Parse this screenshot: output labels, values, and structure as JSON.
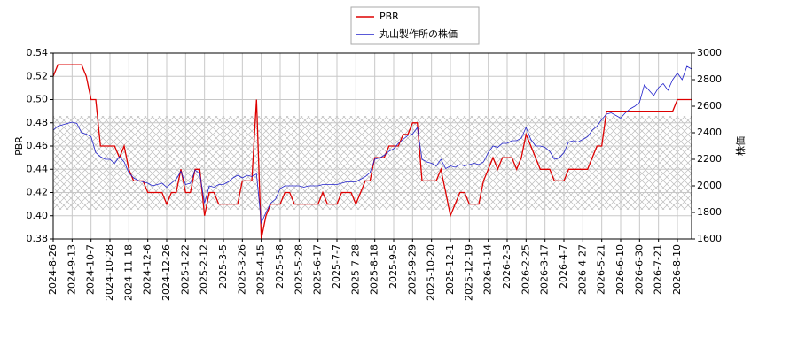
{
  "chart_data": {
    "type": "line",
    "y_label": "PBR",
    "y2_label": "株価",
    "legend": "upper center",
    "categories": [
      "2024-8-26",
      null,
      null,
      null,
      "2024-9-13",
      null,
      null,
      null,
      "2024-10-7",
      null,
      null,
      null,
      "2024-10-28",
      null,
      null,
      null,
      "2024-11-18",
      null,
      null,
      null,
      "2024-12-6",
      null,
      null,
      null,
      "2024-12-26",
      null,
      null,
      null,
      "2025-1-22",
      null,
      null,
      null,
      "2025-2-12",
      null,
      null,
      null,
      "2025-3-5",
      null,
      null,
      null,
      "2025-3-26",
      null,
      null,
      null,
      "2025-4-15",
      null,
      null,
      null,
      "2025-5-8",
      null,
      null,
      null,
      "2025-5-28",
      null,
      null,
      null,
      "2025-6-17",
      null,
      null,
      null,
      "2025-7-7",
      null,
      null,
      null,
      "2025-7-28",
      null,
      null,
      null,
      "2025-8-18",
      null,
      null,
      null,
      "2025-9-5",
      null,
      null,
      null,
      "2025-9-29",
      null,
      null,
      null,
      "2025-10-20",
      null,
      null,
      null,
      "2025-12-1",
      null,
      null,
      null,
      "2025-12-19",
      null,
      null,
      null,
      "2026-1-14",
      null,
      null,
      null,
      "2026-2-3",
      null,
      null,
      null,
      "2026-2-25",
      null,
      null,
      null,
      "2026-3-17",
      null,
      null,
      null,
      "2026-4-7",
      null,
      null,
      null,
      "2026-4-27",
      null,
      null,
      null,
      "2026-5-21",
      null,
      null,
      null,
      "2026-6-10",
      null,
      null,
      null,
      "2026-6-30",
      null,
      null,
      null,
      "2026-7-21",
      null,
      null,
      null,
      "2026-8-10",
      null,
      null,
      null
    ],
    "series": [
      {
        "name": "PBR",
        "color": "#dd0000",
        "values": [
          0.52,
          0.53,
          0.53,
          0.53,
          0.53,
          0.53,
          0.53,
          0.52,
          0.5,
          0.5,
          0.46,
          0.46,
          0.46,
          0.46,
          0.45,
          0.46,
          0.44,
          0.43,
          0.43,
          0.43,
          0.42,
          0.42,
          0.42,
          0.42,
          0.41,
          0.42,
          0.42,
          0.44,
          0.42,
          0.42,
          0.44,
          0.44,
          0.4,
          0.42,
          0.42,
          0.41,
          0.41,
          0.41,
          0.41,
          0.41,
          0.43,
          0.43,
          0.43,
          0.5,
          0.38,
          0.4,
          0.41,
          0.41,
          0.41,
          0.42,
          0.42,
          0.41,
          0.41,
          0.41,
          0.41,
          0.41,
          0.41,
          0.42,
          0.41,
          0.41,
          0.41,
          0.42,
          0.42,
          0.42,
          0.41,
          0.42,
          0.43,
          0.43,
          0.45,
          0.45,
          0.45,
          0.46,
          0.46,
          0.46,
          0.47,
          0.47,
          0.48,
          0.48,
          0.43,
          0.43,
          0.43,
          0.43,
          0.44,
          0.42,
          0.4,
          0.41,
          0.42,
          0.42,
          0.41,
          0.41,
          0.41,
          0.43,
          0.44,
          0.45,
          0.44,
          0.45,
          0.45,
          0.45,
          0.44,
          0.45,
          0.47,
          0.46,
          0.45,
          0.44,
          0.44,
          0.44,
          0.43,
          0.43,
          0.43,
          0.44,
          0.44,
          0.44,
          0.44,
          0.44,
          0.45,
          0.46,
          0.46,
          0.49,
          0.49,
          0.49,
          0.49,
          0.49,
          0.49,
          0.49,
          0.49,
          0.49,
          0.49,
          0.49,
          0.49,
          0.49,
          0.49,
          0.49,
          0.5,
          0.5,
          0.5,
          0.5
        ]
      },
      {
        "name": "丸山製作所の株価",
        "color": "#2222cc",
        "axis": "y2",
        "values": [
          2420,
          2450,
          2460,
          2470,
          2480,
          2470,
          2400,
          2390,
          2370,
          2250,
          2220,
          2200,
          2200,
          2170,
          2220,
          2180,
          2100,
          2060,
          2040,
          2030,
          2020,
          2000,
          2010,
          2020,
          1990,
          2020,
          2050,
          2110,
          2010,
          2020,
          2120,
          2090,
          1870,
          2000,
          1990,
          2010,
          2010,
          2030,
          2060,
          2080,
          2060,
          2080,
          2070,
          2090,
          1720,
          1800,
          1870,
          1900,
          1980,
          2000,
          2000,
          2000,
          2000,
          1990,
          2000,
          2000,
          2000,
          2010,
          2010,
          2010,
          2010,
          2020,
          2030,
          2030,
          2030,
          2050,
          2070,
          2100,
          2200,
          2210,
          2230,
          2260,
          2280,
          2320,
          2350,
          2380,
          2390,
          2440,
          2200,
          2180,
          2170,
          2150,
          2200,
          2130,
          2150,
          2140,
          2160,
          2150,
          2160,
          2170,
          2160,
          2180,
          2250,
          2300,
          2290,
          2320,
          2320,
          2340,
          2340,
          2360,
          2440,
          2350,
          2300,
          2300,
          2290,
          2260,
          2200,
          2210,
          2250,
          2330,
          2340,
          2330,
          2350,
          2370,
          2420,
          2450,
          2500,
          2540,
          2550,
          2530,
          2510,
          2550,
          2580,
          2600,
          2630,
          2760,
          2720,
          2680,
          2740,
          2770,
          2720,
          2800,
          2850,
          2800,
          2900,
          2880
        ]
      }
    ],
    "ylim": [
      0.38,
      0.54
    ],
    "yticks": [
      0.38,
      {
        "value": 0.4,
        "label": "0.40"
      },
      0.42,
      0.44,
      0.46,
      0.48,
      {
        "value": 0.5,
        "label": "0.50"
      },
      0.52,
      0.54
    ],
    "y2lim": [
      1600,
      3000
    ],
    "y2ticks": [
      1600,
      1800,
      2000,
      2200,
      2400,
      2600,
      2800,
      3000
    ],
    "grid": true
  }
}
